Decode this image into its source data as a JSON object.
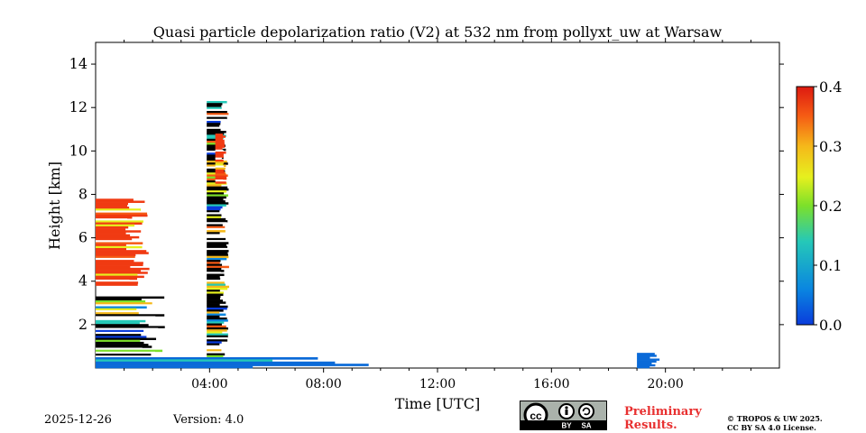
{
  "chart_data": {
    "type": "heatmap",
    "title": "Quasi particle depolarization ratio (V2) at 532 nm from pollyxt_uw at Warsaw",
    "xlabel": "Time [UTC]",
    "ylabel": "Height [km]",
    "xlim": [
      0,
      24
    ],
    "ylim": [
      0,
      15
    ],
    "x_ticks": [
      4,
      8,
      12,
      16,
      20
    ],
    "x_tick_labels": [
      "04:00",
      "08:00",
      "12:00",
      "16:00",
      "20:00"
    ],
    "y_ticks": [
      2,
      4,
      6,
      8,
      10,
      12,
      14
    ],
    "y_tick_labels": [
      "2",
      "4",
      "6",
      "8",
      "10",
      "12",
      "14"
    ],
    "colorbar": {
      "range": [
        0.0,
        0.4
      ],
      "ticks": [
        0.0,
        0.1,
        0.2,
        0.3,
        0.4
      ],
      "tick_labels": [
        "0.0",
        "0.1",
        "0.2",
        "0.3",
        "0.4"
      ],
      "colormap": "jet"
    },
    "regions": [
      {
        "name": "cloud-layers-early",
        "t0": 0.0,
        "t1": 2.5,
        "h0": 0.3,
        "h1": 3.3,
        "value": "mixed",
        "color": "#000000"
      },
      {
        "name": "elevated-aerosol-early",
        "t0": 0.0,
        "t1": 1.9,
        "h0": 3.8,
        "h1": 7.8,
        "value": 0.36,
        "color": "#f03a12"
      },
      {
        "name": "convective-column",
        "t0": 3.9,
        "t1": 4.7,
        "h0": 0.5,
        "h1": 12.3,
        "value": "mixed",
        "color": "#000000"
      },
      {
        "name": "column-top-depolarizing",
        "t0": 4.2,
        "t1": 4.6,
        "h0": 8.5,
        "h1": 10.8,
        "value": 0.36,
        "color": "#f03a12"
      },
      {
        "name": "boundary-layer-aerosol",
        "t0": 0.0,
        "t1": 9.8,
        "h0": 0.0,
        "h1": 0.5,
        "value": 0.04,
        "color": "#0a6ad8"
      },
      {
        "name": "evening-low-signal",
        "t0": 19.0,
        "t1": 19.8,
        "h0": 0.0,
        "h1": 0.7,
        "value": 0.04,
        "color": "#0a6ad8"
      }
    ]
  },
  "footer": {
    "date": "2025-12-26",
    "version": "Version: 4.0",
    "preliminary_line1": "Preliminary",
    "preliminary_line2": "Results.",
    "copyright_line1": "© TROPOS & UW 2025.",
    "copyright_line2": "CC BY SA 4.0 License.",
    "license_badge": {
      "symbol": "cc",
      "by": "BY",
      "sa": "SA"
    }
  },
  "colors": {
    "warning_text": "#e83030",
    "badge_bg": "#aab2ab"
  }
}
